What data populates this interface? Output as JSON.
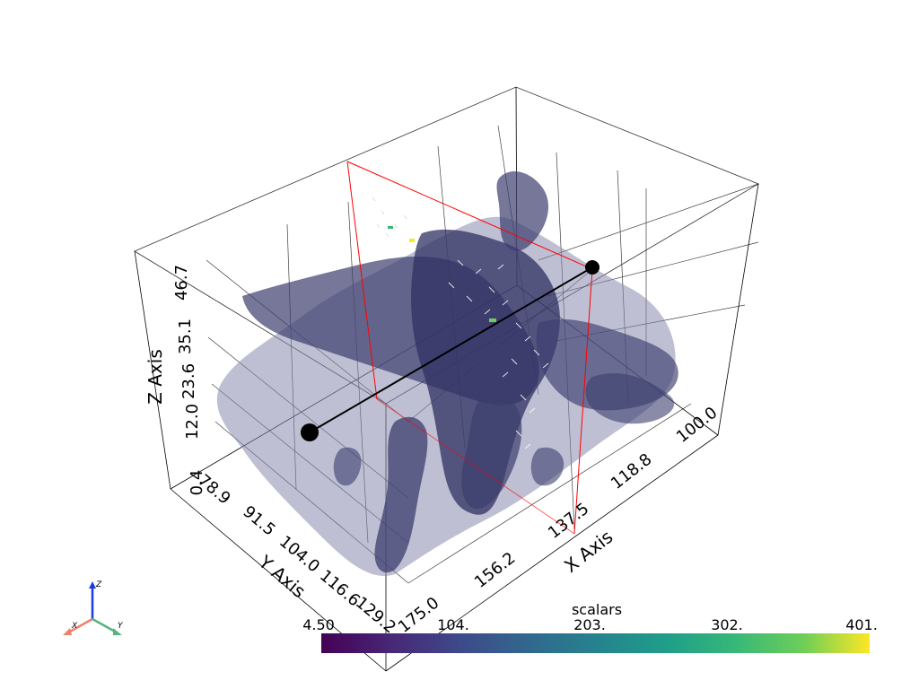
{
  "axes": {
    "x": {
      "title": "X Axis",
      "ticks": [
        "175.0",
        "156.2",
        "137.5",
        "118.8",
        "100.0"
      ]
    },
    "y": {
      "title": "Y Axis",
      "ticks": [
        "78.9",
        "91.5",
        "104.0",
        "116.6",
        "129.2"
      ]
    },
    "z": {
      "title": "Z Axis",
      "ticks": [
        "0.4",
        "12.0",
        "23.6",
        "35.1",
        "46.7"
      ]
    }
  },
  "scalar_bar": {
    "title": "scalars",
    "ticks": [
      "4.50",
      "104.",
      "203.",
      "302.",
      "401."
    ],
    "colormap": "viridis"
  },
  "orientation_widget": {
    "x_label": "X",
    "y_label": "Y",
    "z_label": "Z",
    "x_color": "#ef7f6c",
    "y_color": "#57b47f",
    "z_color": "#1a3be0"
  },
  "colors": {
    "isosurface": "#3c3d6e",
    "isosurface_light": "#8a8bb0",
    "slice_plane": "#ff0000",
    "line_widget": "#000000"
  }
}
